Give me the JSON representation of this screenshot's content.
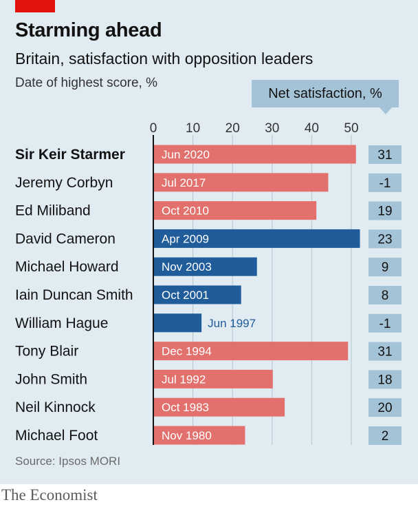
{
  "header": {
    "title": "Starming ahead",
    "subtitle": "Britain, satisfaction with opposition leaders",
    "note": "Date of highest score, %",
    "net_label": "Net satisfaction, %"
  },
  "footer": {
    "source": "Source: Ipsos MORI",
    "brand": "The Economist"
  },
  "colors": {
    "labour": "#e2706d",
    "conservative": "#1f5c99",
    "net_box": "#a4c3d6",
    "panel": "#e1ebf2",
    "brand_tag": "#e3120b"
  },
  "chart_data": {
    "type": "bar",
    "orientation": "horizontal",
    "xlim": [
      0,
      50
    ],
    "x_ticks": [
      "0",
      "10",
      "20",
      "30",
      "40",
      "50"
    ],
    "grid": true,
    "categories": [
      "Sir Keir Starmer",
      "Jeremy Corbyn",
      "Ed Miliband",
      "David Cameron",
      "Michael Howard",
      "Iain Duncan Smith",
      "William Hague",
      "Tony Blair",
      "John Smith",
      "Neil Kinnock",
      "Michael Foot"
    ],
    "values": [
      51,
      44,
      41,
      52,
      26,
      22,
      12,
      49,
      30,
      33,
      23
    ],
    "dates": [
      "Jun 2020",
      "Jul 2017",
      "Oct 2010",
      "Apr 2009",
      "Nov 2003",
      "Oct 2001",
      "Jun 1997",
      "Dec 1994",
      "Jul 1992",
      "Oct 1983",
      "Nov 1980"
    ],
    "party_colors": [
      "#e2706d",
      "#e2706d",
      "#e2706d",
      "#1f5c99",
      "#1f5c99",
      "#1f5c99",
      "#1f5c99",
      "#e2706d",
      "#e2706d",
      "#e2706d",
      "#e2706d"
    ],
    "net_satisfaction": [
      "31",
      "-1",
      "19",
      "23",
      "9",
      "8",
      "-1",
      "31",
      "18",
      "20",
      "2"
    ],
    "highlight": "Sir Keir Starmer"
  }
}
